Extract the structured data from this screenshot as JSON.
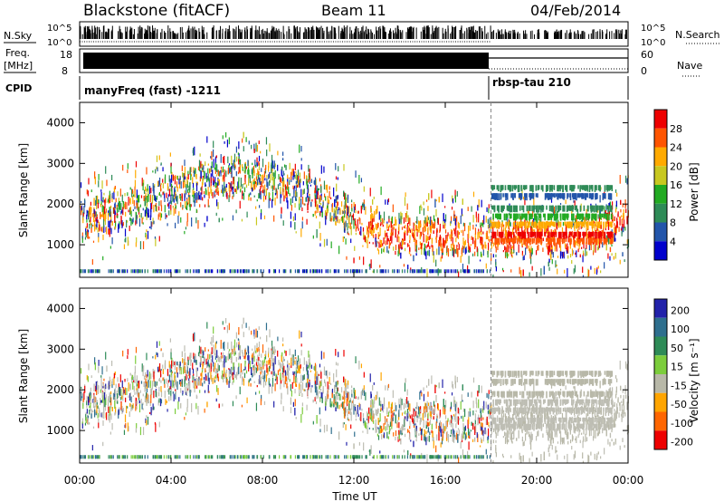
{
  "header": {
    "station": "Blackstone (fitACF)",
    "beam": "Beam 11",
    "date": "04/Feb/2014"
  },
  "strip_labels": {
    "nsky": "N.Sky",
    "nsearch": "N.Search",
    "freq_top": "Freq.",
    "freq_unit": "[MHz]",
    "nave": "Nave",
    "cpid": "CPID",
    "noise_tick_hi": "10^5",
    "noise_tick_lo": "10^0",
    "freq_tick_hi": "18",
    "freq_tick_lo": "8",
    "nave_tick_hi": "60",
    "nave_tick_lo": "0"
  },
  "cpid_modes": [
    {
      "label": "manyFreq (fast) -1211",
      "start_hour": 0
    },
    {
      "label": "rbsp-tau 210",
      "start_hour": 18
    }
  ],
  "colors": {
    "power_scale": [
      "#0000cc",
      "#2255aa",
      "#2e8b57",
      "#22aa22",
      "#c8c820",
      "#ffaa00",
      "#ff5500",
      "#ee0000"
    ],
    "velocity_scale": [
      "#2222aa",
      "#2e6f8e",
      "#2e8b57",
      "#7ccd3c",
      "#b8b8a8",
      "#ffa500",
      "#ff6600",
      "#ee0000"
    ],
    "ground_scatter": "#bebeb4"
  },
  "chart_data": [
    {
      "type": "heatmap",
      "panel": "power",
      "xlabel": "",
      "ylabel": "Slant Range [km]",
      "xlim": [
        0,
        24
      ],
      "ylim": [
        200,
        4500
      ],
      "x_ticks": [
        "00:00",
        "04:00",
        "08:00",
        "12:00",
        "16:00",
        "20:00",
        "00:00"
      ],
      "y_ticks": [
        1000,
        2000,
        3000,
        4000
      ],
      "colorbar": {
        "label": "Power [dB]",
        "ticks": [
          "4",
          "8",
          "12",
          "16",
          "20",
          "24",
          "28"
        ],
        "range": [
          0,
          30
        ]
      }
    },
    {
      "type": "heatmap",
      "panel": "velocity",
      "xlabel": "Time UT",
      "ylabel": "Slant Range [km]",
      "xlim": [
        0,
        24
      ],
      "ylim": [
        200,
        4500
      ],
      "x_ticks": [
        "00:00",
        "04:00",
        "08:00",
        "12:00",
        "16:00",
        "20:00",
        "00:00"
      ],
      "y_ticks": [
        1000,
        2000,
        3000,
        4000
      ],
      "colorbar": {
        "label": "Velocity [m s⁻¹]",
        "ticks": [
          "200",
          "100",
          "50",
          "15",
          "-15",
          "-50",
          "-100",
          "-200"
        ],
        "range": [
          -250,
          250
        ]
      }
    }
  ]
}
